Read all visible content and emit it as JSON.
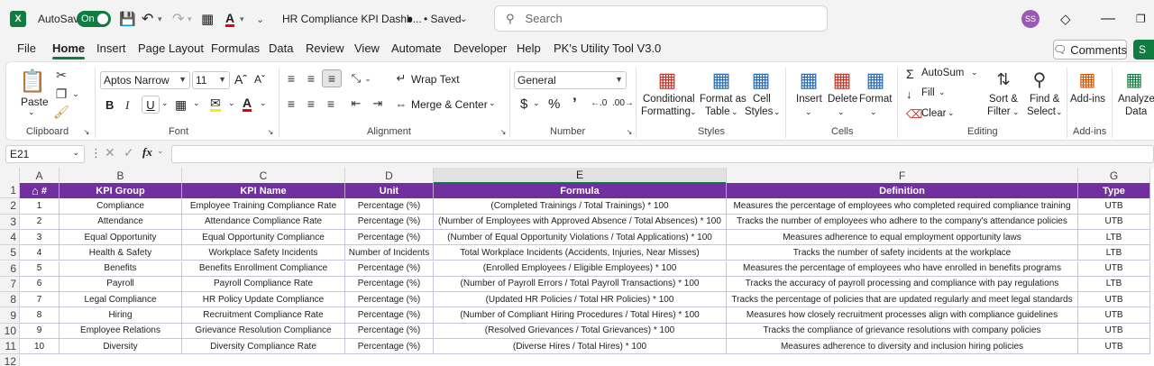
{
  "titlebar": {
    "autosave_label": "AutoSave",
    "autosave_state": "On",
    "doc_title": "HR Compliance KPI Dashb...",
    "saved_status": "• Saved",
    "search_placeholder": "Search",
    "user_initials": "SS"
  },
  "menu": {
    "tabs": [
      "File",
      "Home",
      "Insert",
      "Page Layout",
      "Formulas",
      "Data",
      "Review",
      "View",
      "Automate",
      "Developer",
      "Help",
      "PK's Utility Tool V3.0"
    ],
    "active": "Home",
    "comments_label": "Comments",
    "share_label": "S"
  },
  "ribbon": {
    "clipboard": {
      "paste": "Paste",
      "label": "Clipboard"
    },
    "font": {
      "name": "Aptos Narrow",
      "size": "11",
      "label": "Font"
    },
    "alignment": {
      "wrap_text": "Wrap Text",
      "merge_center": "Merge & Center",
      "label": "Alignment"
    },
    "number": {
      "format": "General",
      "label": "Number"
    },
    "styles": {
      "conditional_1": "Conditional",
      "conditional_2": "Formatting",
      "format_as_1": "Format as",
      "format_as_2": "Table",
      "cell_styles_1": "Cell",
      "cell_styles_2": "Styles",
      "label": "Styles"
    },
    "cells": {
      "insert": "Insert",
      "delete": "Delete",
      "format": "Format",
      "label": "Cells"
    },
    "editing": {
      "autosum": "AutoSum",
      "fill": "Fill",
      "clear": "Clear",
      "sort_1": "Sort &",
      "sort_2": "Filter",
      "find_1": "Find &",
      "find_2": "Select",
      "label": "Editing"
    },
    "addins": {
      "addins": "Add-ins",
      "label": "Add-ins"
    },
    "analyze": {
      "line1": "Analyze",
      "line2": "Data"
    }
  },
  "formula_bar": {
    "cell_ref": "E21",
    "fx": "fx",
    "value": ""
  },
  "sheet": {
    "columns": [
      "A",
      "B",
      "C",
      "D",
      "E",
      "F",
      "G"
    ],
    "row_numbers": [
      "1",
      "2",
      "3",
      "4",
      "5",
      "6",
      "7",
      "8",
      "9",
      "10",
      "11",
      "12"
    ],
    "header": [
      "#",
      "KPI Group",
      "KPI Name",
      "Unit",
      "Formula",
      "Definition",
      "Type"
    ],
    "rows": [
      [
        "1",
        "Compliance",
        "Employee Training Compliance Rate",
        "Percentage (%)",
        "(Completed Trainings / Total Trainings) * 100",
        "Measures the percentage of employees who completed required compliance training",
        "UTB"
      ],
      [
        "2",
        "Attendance",
        "Attendance Compliance Rate",
        "Percentage (%)",
        "(Number of Employees with Approved Absence / Total Absences) * 100",
        "Tracks the number of employees who adhere to the company's attendance policies",
        "UTB"
      ],
      [
        "3",
        "Equal Opportunity",
        "Equal Opportunity Compliance",
        "Percentage (%)",
        "(Number of Equal Opportunity Violations / Total Applications) * 100",
        "Measures adherence to equal employment opportunity laws",
        "LTB"
      ],
      [
        "4",
        "Health & Safety",
        "Workplace Safety Incidents",
        "Number of Incidents",
        "Total Workplace Incidents (Accidents, Injuries, Near Misses)",
        "Tracks the number of safety incidents at the workplace",
        "LTB"
      ],
      [
        "5",
        "Benefits",
        "Benefits Enrollment Compliance",
        "Percentage (%)",
        "(Enrolled Employees / Eligible Employees) * 100",
        "Measures the percentage of employees who have enrolled in benefits programs",
        "UTB"
      ],
      [
        "6",
        "Payroll",
        "Payroll Compliance Rate",
        "Percentage (%)",
        "(Number of Payroll Errors / Total Payroll Transactions) * 100",
        "Tracks the accuracy of payroll processing and compliance with pay regulations",
        "LTB"
      ],
      [
        "7",
        "Legal Compliance",
        "HR Policy Update Compliance",
        "Percentage (%)",
        "(Updated HR Policies / Total HR Policies) * 100",
        "Tracks the percentage of policies that are updated regularly and meet legal standards",
        "UTB"
      ],
      [
        "8",
        "Hiring",
        "Recruitment Compliance Rate",
        "Percentage (%)",
        "(Number of Compliant Hiring Procedures / Total Hires) * 100",
        "Measures how closely recruitment processes align with compliance guidelines",
        "UTB"
      ],
      [
        "9",
        "Employee Relations",
        "Grievance Resolution Compliance",
        "Percentage (%)",
        "(Resolved Grievances / Total Grievances) * 100",
        "Tracks the compliance of grievance resolutions with company policies",
        "UTB"
      ],
      [
        "10",
        "Diversity",
        "Diversity Compliance Rate",
        "Percentage (%)",
        "(Diverse Hires / Total Hires) * 100",
        "Measures adherence to diversity and inclusion hiring policies",
        "UTB"
      ]
    ]
  },
  "colors": {
    "header_fill": "#7030a0",
    "accent": "#107c41"
  }
}
